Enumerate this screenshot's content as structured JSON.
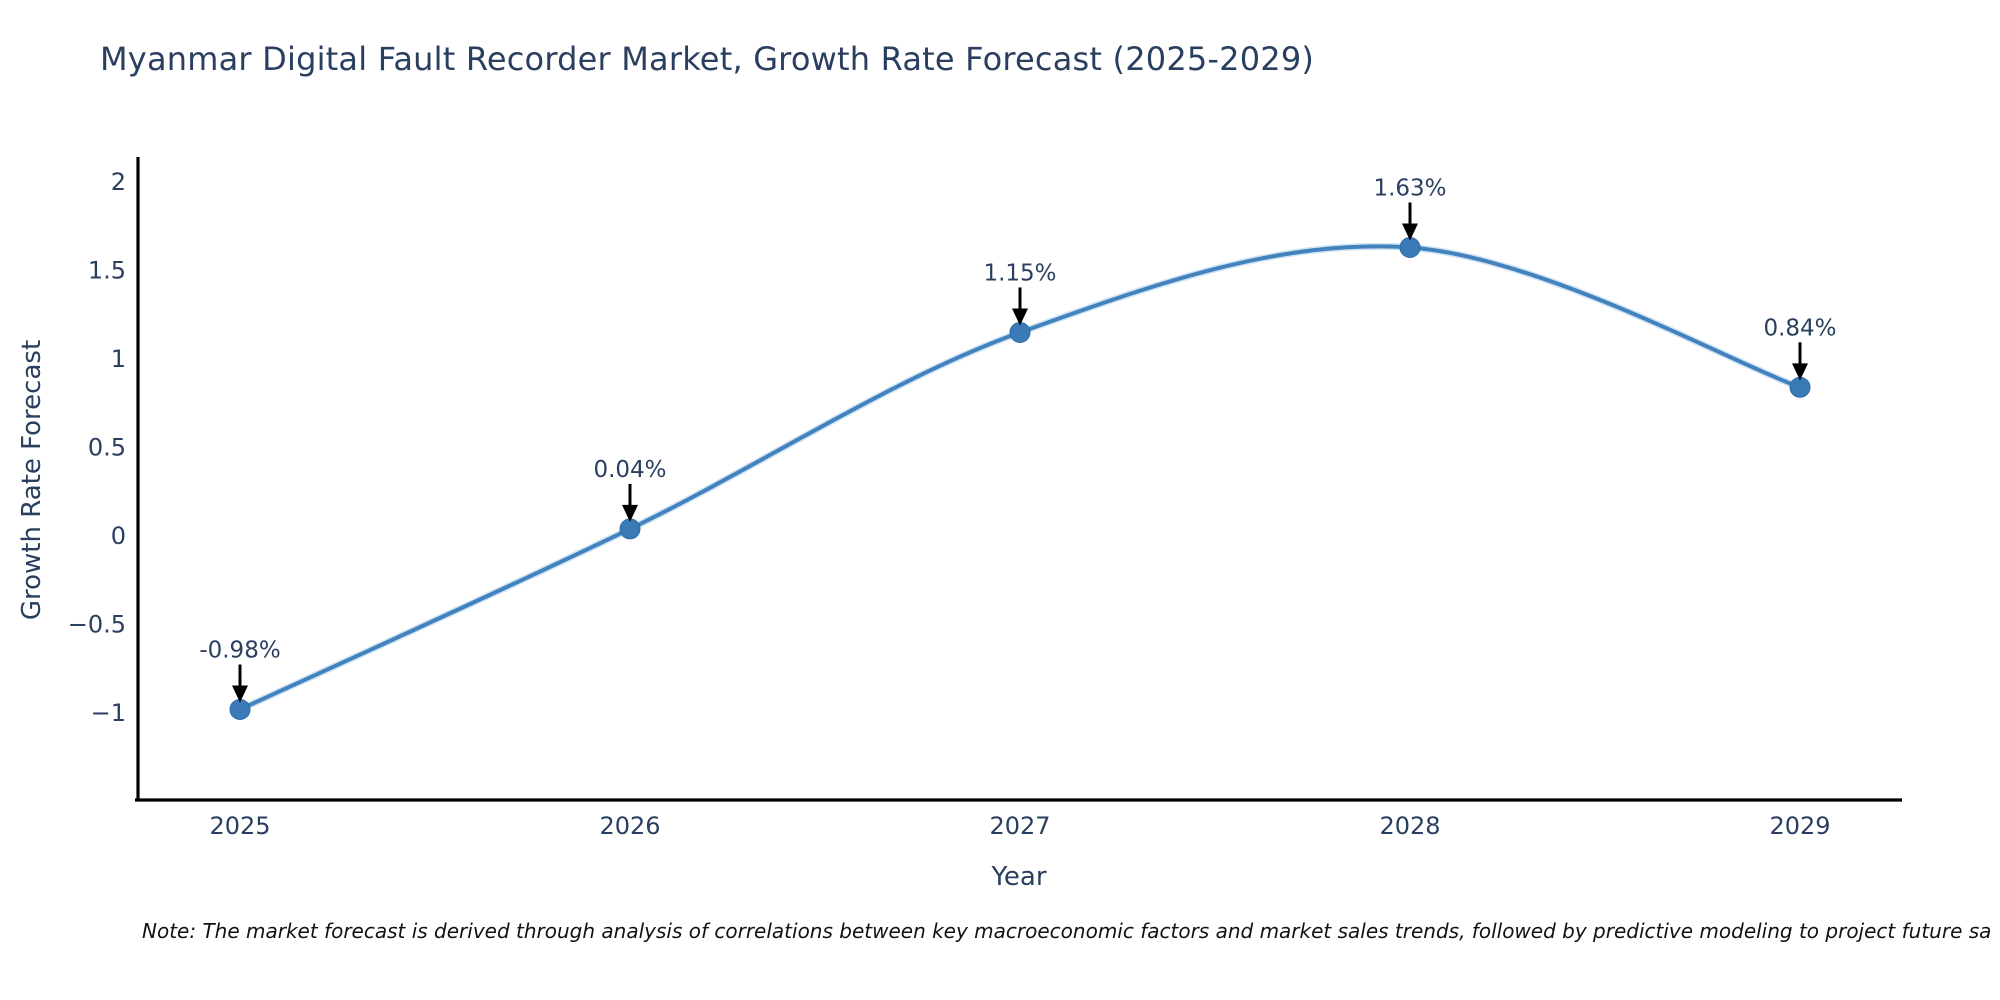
{
  "title": "Myanmar Digital Fault Recorder Market, Growth Rate Forecast (2025-2029)",
  "note": "Note: The market forecast is derived through analysis of correlations between key macroeconomic factors and market sales trends, followed by predictive modeling to project future sa",
  "chart_data": {
    "type": "line",
    "title": "Myanmar Digital Fault Recorder Market, Growth Rate Forecast (2025-2029)",
    "xlabel": "Year",
    "ylabel": "Growth Rate Forecast",
    "x": [
      2025,
      2026,
      2027,
      2028,
      2029
    ],
    "series": [
      {
        "name": "Growth Rate Forecast",
        "values": [
          -0.98,
          0.04,
          1.15,
          1.63,
          0.84
        ]
      }
    ],
    "point_labels": [
      "-0.98%",
      "0.04%",
      "1.15%",
      "1.63%",
      "0.84%"
    ],
    "yticks": [
      2,
      1.5,
      1,
      0.5,
      0,
      -0.5,
      -1
    ],
    "ylim": [
      -1.5,
      2.15
    ],
    "xlim": [
      2024.74,
      2029.26
    ],
    "grid": false,
    "legend": "none",
    "line_shape": "spline",
    "marker": "circle",
    "annotation_arrows": "down"
  },
  "colors": {
    "background": "#ffffff",
    "title_text": "#2a3f5f",
    "axis_text": "#2a3f5f",
    "axis_line": "#000000",
    "line": "#4383bd",
    "line_halo": "#cfe3f5",
    "marker_fill": "#3a7ab6",
    "marker_edge": "#2f6da9",
    "annotation_text": "#2a3f5f",
    "arrow": "#000000",
    "note_text": "#121212"
  }
}
